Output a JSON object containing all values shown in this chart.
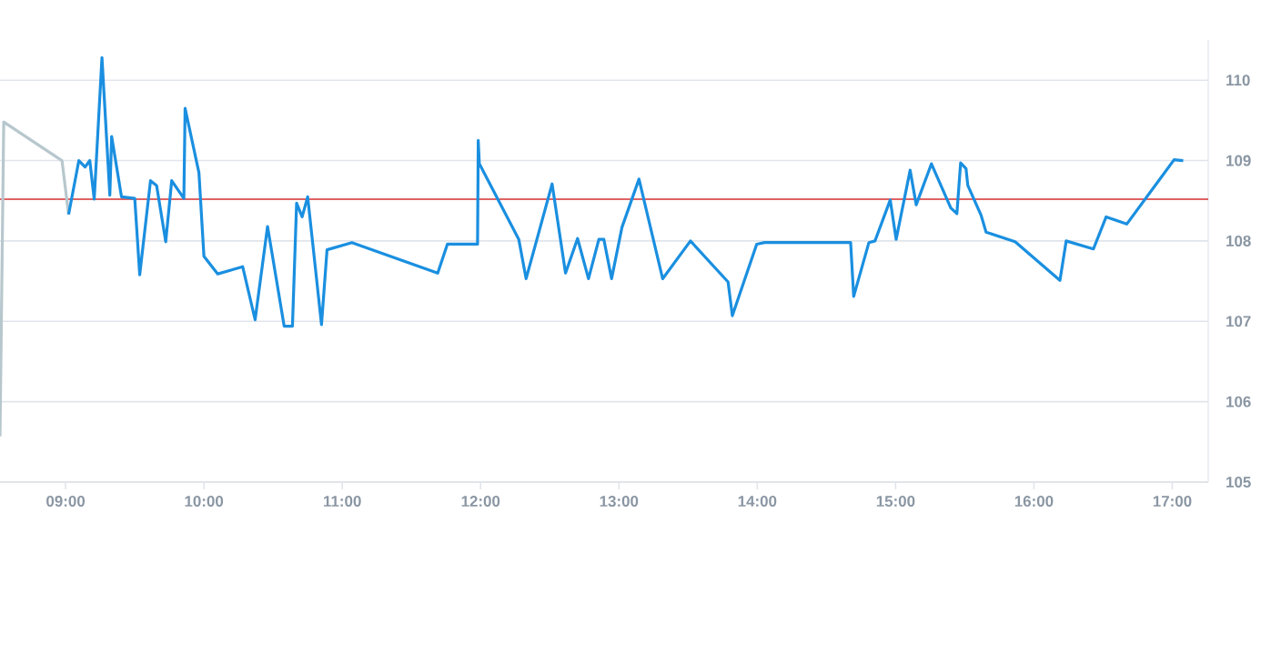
{
  "chart_data": {
    "type": "line",
    "xlim": [
      8.526,
      17.26
    ],
    "ylim": [
      105,
      110.5
    ],
    "xticks": [
      {
        "value": 9,
        "label": "09:00"
      },
      {
        "value": 10,
        "label": "10:00"
      },
      {
        "value": 11,
        "label": "11:00"
      },
      {
        "value": 12,
        "label": "12:00"
      },
      {
        "value": 13,
        "label": "13:00"
      },
      {
        "value": 14,
        "label": "14:00"
      },
      {
        "value": 15,
        "label": "15:00"
      },
      {
        "value": 16,
        "label": "16:00"
      },
      {
        "value": 17,
        "label": "17:00"
      }
    ],
    "yticks": [
      105,
      106,
      107,
      108,
      109,
      110
    ],
    "grid": "y",
    "ref_lines": [
      {
        "axis": "y",
        "value": 108.52,
        "color": "#d32f2f"
      }
    ],
    "series": [
      {
        "color": "#b7c7cd",
        "x": [
          8.526,
          8.553,
          8.974,
          9.022
        ],
        "values": [
          105.57,
          109.48,
          109.0,
          108.33
        ]
      },
      {
        "color": "#1a8fe0",
        "x": [
          9.022,
          9.096,
          9.141,
          9.175,
          9.207,
          9.263,
          9.32,
          9.333,
          9.404,
          9.5,
          9.536,
          9.614,
          9.658,
          9.724,
          9.767,
          9.855,
          9.864,
          9.964,
          10.0,
          10.1,
          10.28,
          10.37,
          10.46,
          10.58,
          10.64,
          10.67,
          10.71,
          10.75,
          10.85,
          10.89,
          11.07,
          11.69,
          11.76,
          11.978,
          11.983,
          11.991,
          12.276,
          12.329,
          12.517,
          12.614,
          12.701,
          12.78,
          12.855,
          12.891,
          12.947,
          13.022,
          13.145,
          13.316,
          13.517,
          13.789,
          13.82,
          13.996,
          14.053,
          14.675,
          14.697,
          14.807,
          14.851,
          14.961,
          15.004,
          15.105,
          15.149,
          15.259,
          15.399,
          15.443,
          15.47,
          15.509,
          15.522,
          15.618,
          15.654,
          15.864,
          16.188,
          16.233,
          16.43,
          16.522,
          16.671,
          17.013,
          17.079
        ],
        "values": [
          108.33,
          109.0,
          108.92,
          109.0,
          108.52,
          110.28,
          108.57,
          109.3,
          108.55,
          108.53,
          107.58,
          108.75,
          108.69,
          107.99,
          108.75,
          108.53,
          109.65,
          108.85,
          107.81,
          107.59,
          107.68,
          107.02,
          108.18,
          106.94,
          106.94,
          108.47,
          108.3,
          108.55,
          106.96,
          107.89,
          107.98,
          107.6,
          107.96,
          107.96,
          109.25,
          108.96,
          108.02,
          107.53,
          108.71,
          107.6,
          108.03,
          107.53,
          108.02,
          108.02,
          107.53,
          108.17,
          108.77,
          107.53,
          108.0,
          107.49,
          107.07,
          107.96,
          107.98,
          107.98,
          107.31,
          107.98,
          108.0,
          108.51,
          108.02,
          108.88,
          108.45,
          108.96,
          108.41,
          108.34,
          108.97,
          108.9,
          108.69,
          108.32,
          108.11,
          107.99,
          107.51,
          108.0,
          107.9,
          108.3,
          108.21,
          109.01,
          109.0
        ]
      }
    ]
  }
}
